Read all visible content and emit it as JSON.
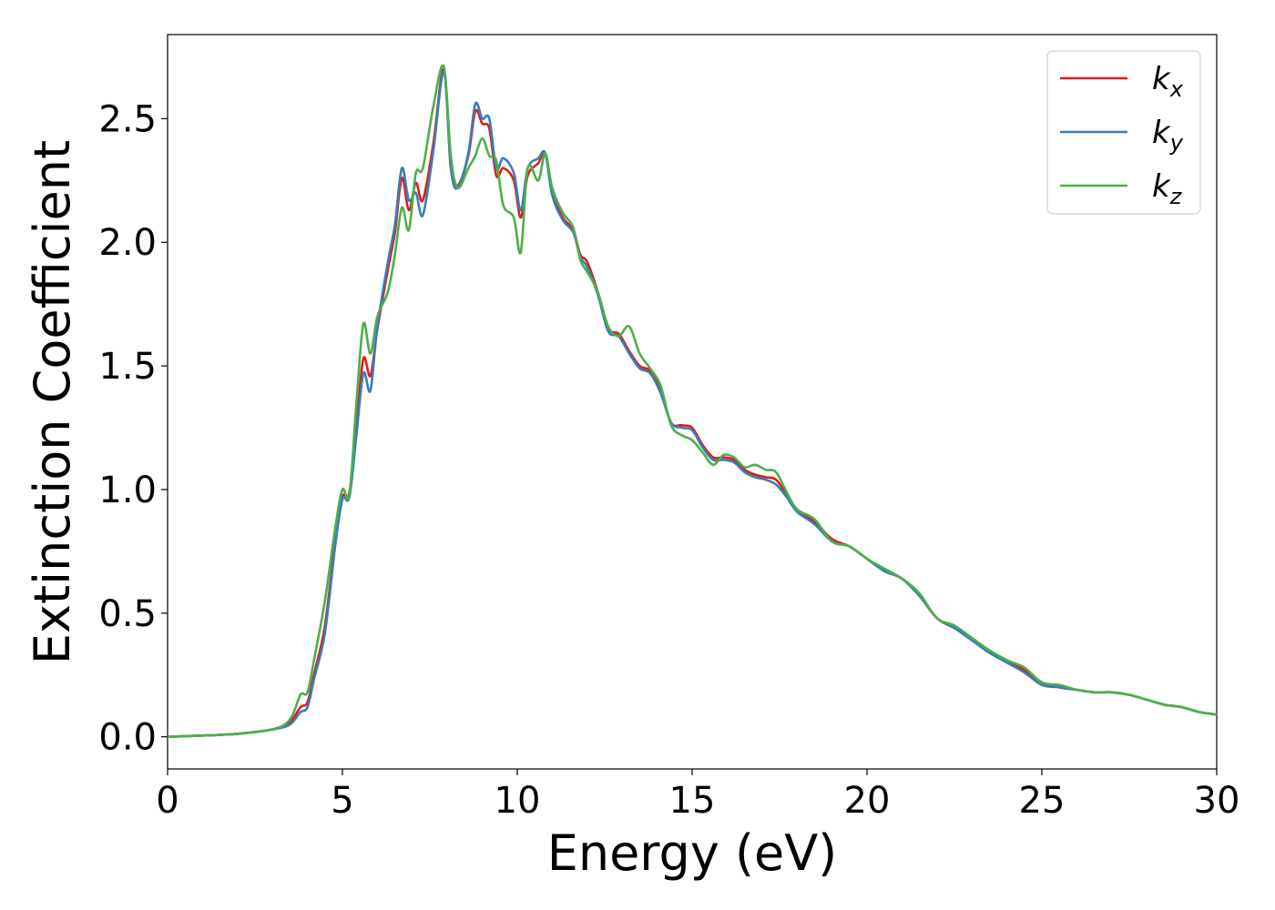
{
  "chart_data": {
    "type": "line",
    "title": "",
    "xlabel": "Energy (eV)",
    "ylabel": "Extinction Coefficient",
    "xlim": [
      0,
      30
    ],
    "ylim": [
      -0.13,
      2.84
    ],
    "xticks": [
      0,
      5,
      10,
      15,
      20,
      25,
      30
    ],
    "xtick_labels": [
      "0",
      "5",
      "10",
      "15",
      "20",
      "25",
      "30"
    ],
    "yticks": [
      0.0,
      0.5,
      1.0,
      1.5,
      2.0,
      2.5
    ],
    "ytick_labels": [
      "0.0",
      "0.5",
      "1.0",
      "1.5",
      "2.0",
      "2.5"
    ],
    "grid": false,
    "legend": "top-right",
    "series": [
      {
        "name": "k",
        "subscript": "x",
        "color": "#e41a1c",
        "x": [
          0,
          1,
          2,
          3,
          3.5,
          3.8,
          4.0,
          4.2,
          4.5,
          4.8,
          5.0,
          5.2,
          5.4,
          5.6,
          5.8,
          6.0,
          6.3,
          6.5,
          6.7,
          6.9,
          7.1,
          7.3,
          7.6,
          7.9,
          8.1,
          8.3,
          8.6,
          8.8,
          9.0,
          9.2,
          9.4,
          9.6,
          9.9,
          10.1,
          10.3,
          10.6,
          10.8,
          11.0,
          11.3,
          11.6,
          11.8,
          12.0,
          12.3,
          12.6,
          12.9,
          13.2,
          13.5,
          13.8,
          14.1,
          14.4,
          14.7,
          15.0,
          15.3,
          15.6,
          15.9,
          16.2,
          16.5,
          16.8,
          17.1,
          17.4,
          17.7,
          18.0,
          18.5,
          19.0,
          19.5,
          20.0,
          20.5,
          21.0,
          21.5,
          22.0,
          22.5,
          23.0,
          23.5,
          24.0,
          24.5,
          25.0,
          25.5,
          26.0,
          26.5,
          27.0,
          27.5,
          28.0,
          28.5,
          29.0,
          29.5,
          30.0
        ],
        "y": [
          0.0,
          0.005,
          0.012,
          0.03,
          0.06,
          0.12,
          0.14,
          0.26,
          0.45,
          0.8,
          0.97,
          0.99,
          1.26,
          1.53,
          1.46,
          1.65,
          1.89,
          2.04,
          2.26,
          2.13,
          2.24,
          2.17,
          2.4,
          2.7,
          2.3,
          2.23,
          2.35,
          2.53,
          2.48,
          2.46,
          2.27,
          2.3,
          2.25,
          2.1,
          2.27,
          2.32,
          2.36,
          2.2,
          2.1,
          2.05,
          1.95,
          1.92,
          1.8,
          1.65,
          1.63,
          1.56,
          1.5,
          1.48,
          1.4,
          1.27,
          1.26,
          1.25,
          1.18,
          1.13,
          1.13,
          1.12,
          1.08,
          1.06,
          1.05,
          1.04,
          0.98,
          0.92,
          0.87,
          0.8,
          0.77,
          0.72,
          0.67,
          0.64,
          0.57,
          0.48,
          0.44,
          0.4,
          0.34,
          0.31,
          0.27,
          0.22,
          0.2,
          0.19,
          0.18,
          0.18,
          0.17,
          0.15,
          0.13,
          0.12,
          0.1,
          0.09
        ]
      },
      {
        "name": "k",
        "subscript": "y",
        "color": "#377eb8",
        "x": [
          0,
          1,
          2,
          3,
          3.5,
          3.8,
          4.0,
          4.2,
          4.5,
          4.8,
          5.0,
          5.2,
          5.4,
          5.6,
          5.8,
          6.0,
          6.3,
          6.5,
          6.7,
          6.9,
          7.1,
          7.3,
          7.6,
          7.9,
          8.1,
          8.3,
          8.6,
          8.8,
          9.0,
          9.2,
          9.4,
          9.6,
          9.9,
          10.1,
          10.3,
          10.6,
          10.8,
          11.0,
          11.3,
          11.6,
          11.8,
          12.0,
          12.3,
          12.6,
          12.9,
          13.2,
          13.5,
          13.8,
          14.1,
          14.4,
          14.7,
          15.0,
          15.3,
          15.6,
          15.9,
          16.2,
          16.5,
          16.8,
          17.1,
          17.4,
          17.7,
          18.0,
          18.5,
          19.0,
          19.5,
          20.0,
          20.5,
          21.0,
          21.5,
          22.0,
          22.5,
          23.0,
          23.5,
          24.0,
          24.5,
          25.0,
          25.5,
          26.0,
          26.5,
          27.0,
          27.5,
          28.0,
          28.5,
          29.0,
          29.5,
          30.0
        ],
        "y": [
          0.0,
          0.005,
          0.012,
          0.03,
          0.05,
          0.1,
          0.12,
          0.24,
          0.42,
          0.78,
          0.96,
          0.97,
          1.22,
          1.47,
          1.4,
          1.66,
          1.92,
          2.07,
          2.3,
          2.17,
          2.2,
          2.11,
          2.37,
          2.69,
          2.3,
          2.22,
          2.36,
          2.56,
          2.5,
          2.5,
          2.3,
          2.34,
          2.28,
          2.13,
          2.3,
          2.34,
          2.36,
          2.19,
          2.09,
          2.04,
          1.94,
          1.9,
          1.79,
          1.64,
          1.62,
          1.55,
          1.49,
          1.47,
          1.39,
          1.27,
          1.25,
          1.24,
          1.17,
          1.12,
          1.12,
          1.11,
          1.07,
          1.05,
          1.04,
          1.02,
          0.97,
          0.91,
          0.86,
          0.79,
          0.77,
          0.72,
          0.67,
          0.64,
          0.57,
          0.48,
          0.44,
          0.39,
          0.34,
          0.3,
          0.26,
          0.21,
          0.2,
          0.19,
          0.18,
          0.18,
          0.17,
          0.15,
          0.13,
          0.12,
          0.1,
          0.09
        ]
      },
      {
        "name": "k",
        "subscript": "z",
        "color": "#4daf4a",
        "x": [
          0,
          1,
          2,
          3,
          3.5,
          3.8,
          4.0,
          4.2,
          4.5,
          4.8,
          5.0,
          5.2,
          5.4,
          5.6,
          5.8,
          6.0,
          6.3,
          6.5,
          6.7,
          6.9,
          7.1,
          7.3,
          7.6,
          7.9,
          8.1,
          8.3,
          8.6,
          8.8,
          9.0,
          9.2,
          9.4,
          9.6,
          9.9,
          10.1,
          10.3,
          10.6,
          10.8,
          11.0,
          11.3,
          11.6,
          11.8,
          12.0,
          12.3,
          12.6,
          12.9,
          13.2,
          13.5,
          13.8,
          14.1,
          14.4,
          14.7,
          15.0,
          15.3,
          15.6,
          15.9,
          16.2,
          16.5,
          16.8,
          17.1,
          17.4,
          17.7,
          18.0,
          18.5,
          19.0,
          19.5,
          20.0,
          20.5,
          21.0,
          21.5,
          22.0,
          22.5,
          23.0,
          23.5,
          24.0,
          24.5,
          25.0,
          25.5,
          26.0,
          26.5,
          27.0,
          27.5,
          28.0,
          28.5,
          29.0,
          29.5,
          30.0
        ],
        "y": [
          0.0,
          0.005,
          0.012,
          0.03,
          0.07,
          0.17,
          0.18,
          0.32,
          0.55,
          0.85,
          1.0,
          0.98,
          1.35,
          1.67,
          1.55,
          1.7,
          1.8,
          1.95,
          2.14,
          2.05,
          2.28,
          2.3,
          2.55,
          2.71,
          2.35,
          2.22,
          2.3,
          2.35,
          2.42,
          2.35,
          2.33,
          2.15,
          2.1,
          1.96,
          2.3,
          2.25,
          2.36,
          2.22,
          2.12,
          2.06,
          1.93,
          1.88,
          1.8,
          1.66,
          1.62,
          1.66,
          1.55,
          1.49,
          1.42,
          1.26,
          1.22,
          1.2,
          1.15,
          1.1,
          1.14,
          1.13,
          1.09,
          1.1,
          1.08,
          1.07,
          0.99,
          0.92,
          0.88,
          0.79,
          0.77,
          0.72,
          0.68,
          0.64,
          0.58,
          0.48,
          0.45,
          0.4,
          0.35,
          0.31,
          0.28,
          0.22,
          0.21,
          0.19,
          0.18,
          0.18,
          0.17,
          0.15,
          0.13,
          0.12,
          0.1,
          0.09
        ]
      }
    ]
  }
}
